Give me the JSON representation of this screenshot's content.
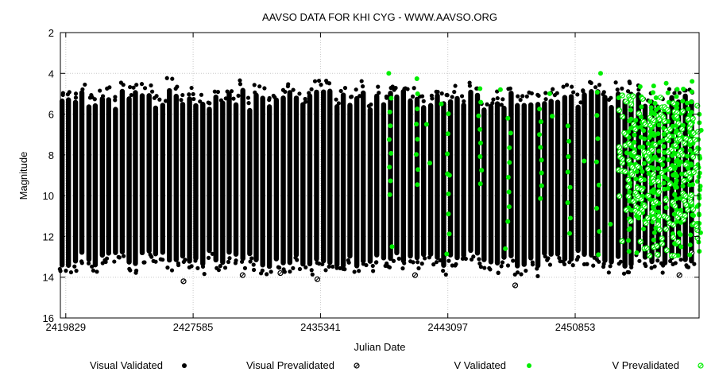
{
  "chart_data": {
    "type": "scatter",
    "title": "AAVSO DATA FOR KHI CYG - WWW.AAVSO.ORG",
    "xlabel": "Julian Date",
    "ylabel": "Magnitude",
    "xlim": [
      2419500,
      2458400
    ],
    "ylim": [
      16,
      2
    ],
    "y_inverted": true,
    "grid": true,
    "x_ticks": [
      2419829,
      2427585,
      2435341,
      2443097,
      2450853
    ],
    "y_ticks": [
      2,
      4,
      6,
      8,
      10,
      12,
      14,
      16
    ],
    "legend_position": "bottom",
    "colors": {
      "visual": "#000000",
      "v_band": "#00ee00"
    },
    "period_days": 408,
    "series": [
      {
        "name": "Visual Validated",
        "marker": "filled-circle",
        "color": "#000000",
        "x_range": [
          2419600,
          2458350
        ],
        "typical_max_mag": 5.0,
        "typical_min_mag": 13.5
      },
      {
        "name": "Visual Prevalidated",
        "marker": "hatched-circle",
        "color": "#000000",
        "points": [
          [
            2427000,
            14.2
          ],
          [
            2430600,
            13.9
          ],
          [
            2432900,
            13.8
          ],
          [
            2435150,
            14.1
          ],
          [
            2441100,
            13.9
          ],
          [
            2447200,
            14.4
          ],
          [
            2457200,
            13.9
          ],
          [
            2457950,
            12.8
          ]
        ]
      },
      {
        "name": "V Validated",
        "marker": "filled-circle",
        "color": "#00ee00",
        "x_range": [
          2439300,
          2458350
        ],
        "points": [
          [
            2439500,
            4.0
          ],
          [
            2439700,
            12.5
          ],
          [
            2441800,
            6.5
          ],
          [
            2442000,
            8.4
          ],
          [
            2442700,
            5.5
          ],
          [
            2443200,
            9.0
          ],
          [
            2446300,
            4.8
          ],
          [
            2446600,
            12.6
          ],
          [
            2449300,
            5.0
          ],
          [
            2449450,
            6.1
          ],
          [
            2451400,
            8.3
          ],
          [
            2452400,
            4.0
          ],
          [
            2453000,
            11.4
          ],
          [
            2453500,
            5.2
          ],
          [
            2454000,
            7.9
          ],
          [
            2454600,
            12.8
          ]
        ]
      },
      {
        "name": "V Prevalidated",
        "marker": "hatched-circle",
        "color": "#00ee00",
        "x_range": [
          2453500,
          2458350
        ]
      }
    ]
  }
}
